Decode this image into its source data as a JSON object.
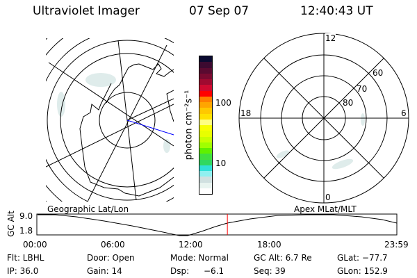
{
  "header": {
    "instrument": "Ultraviolet Imager",
    "date": "07 Sep 07",
    "time": "12:40:43 UT"
  },
  "colorbar": {
    "label": "photon cm⁻²s⁻¹",
    "ticks": [
      "100",
      "10"
    ],
    "colors": [
      "#0a0a30",
      "#3c0a30",
      "#5a0a30",
      "#7a0a30",
      "#a00a30",
      "#d00a30",
      "#ff0000",
      "#ff7f00",
      "#ffa500",
      "#ffc800",
      "#ffe000",
      "#ffff80",
      "#f8ff00",
      "#e8ff00",
      "#c8ff00",
      "#a0ff00",
      "#60f000",
      "#40e040",
      "#30d860",
      "#30e0d8",
      "#90f0f0",
      "#d0e0e0",
      "#e8f4f0",
      "#ffffff"
    ]
  },
  "polar": {
    "mlt_labels": [
      "12",
      "18",
      "6",
      "0"
    ],
    "lat_labels": [
      "60",
      "70",
      "80"
    ]
  },
  "altplot": {
    "left_label": "Geographic Lat/Lon",
    "right_label": "Apex MLat/MLT",
    "ylabel": "GC Alt",
    "yticks": [
      "9.0",
      "1.8"
    ],
    "xticks": [
      "00:00",
      "06:00",
      "12:00",
      "18:00",
      "23:59"
    ],
    "current_time_hours": 12.68,
    "marker_color": "#ff0000"
  },
  "status": {
    "flt": "Flt: LBHL",
    "ip": "IP: 36.0",
    "door": "Door: Open",
    "gain": "Gain: 14",
    "mode": "Mode: Normal",
    "dsp_label": "Dsp:",
    "dsp_value": "−6.1",
    "gcalt": "GC Alt: 6.7 Re",
    "seq": "Seq: 39",
    "glat": "GLat: −77.7",
    "glon": "GLon: 152.9"
  }
}
